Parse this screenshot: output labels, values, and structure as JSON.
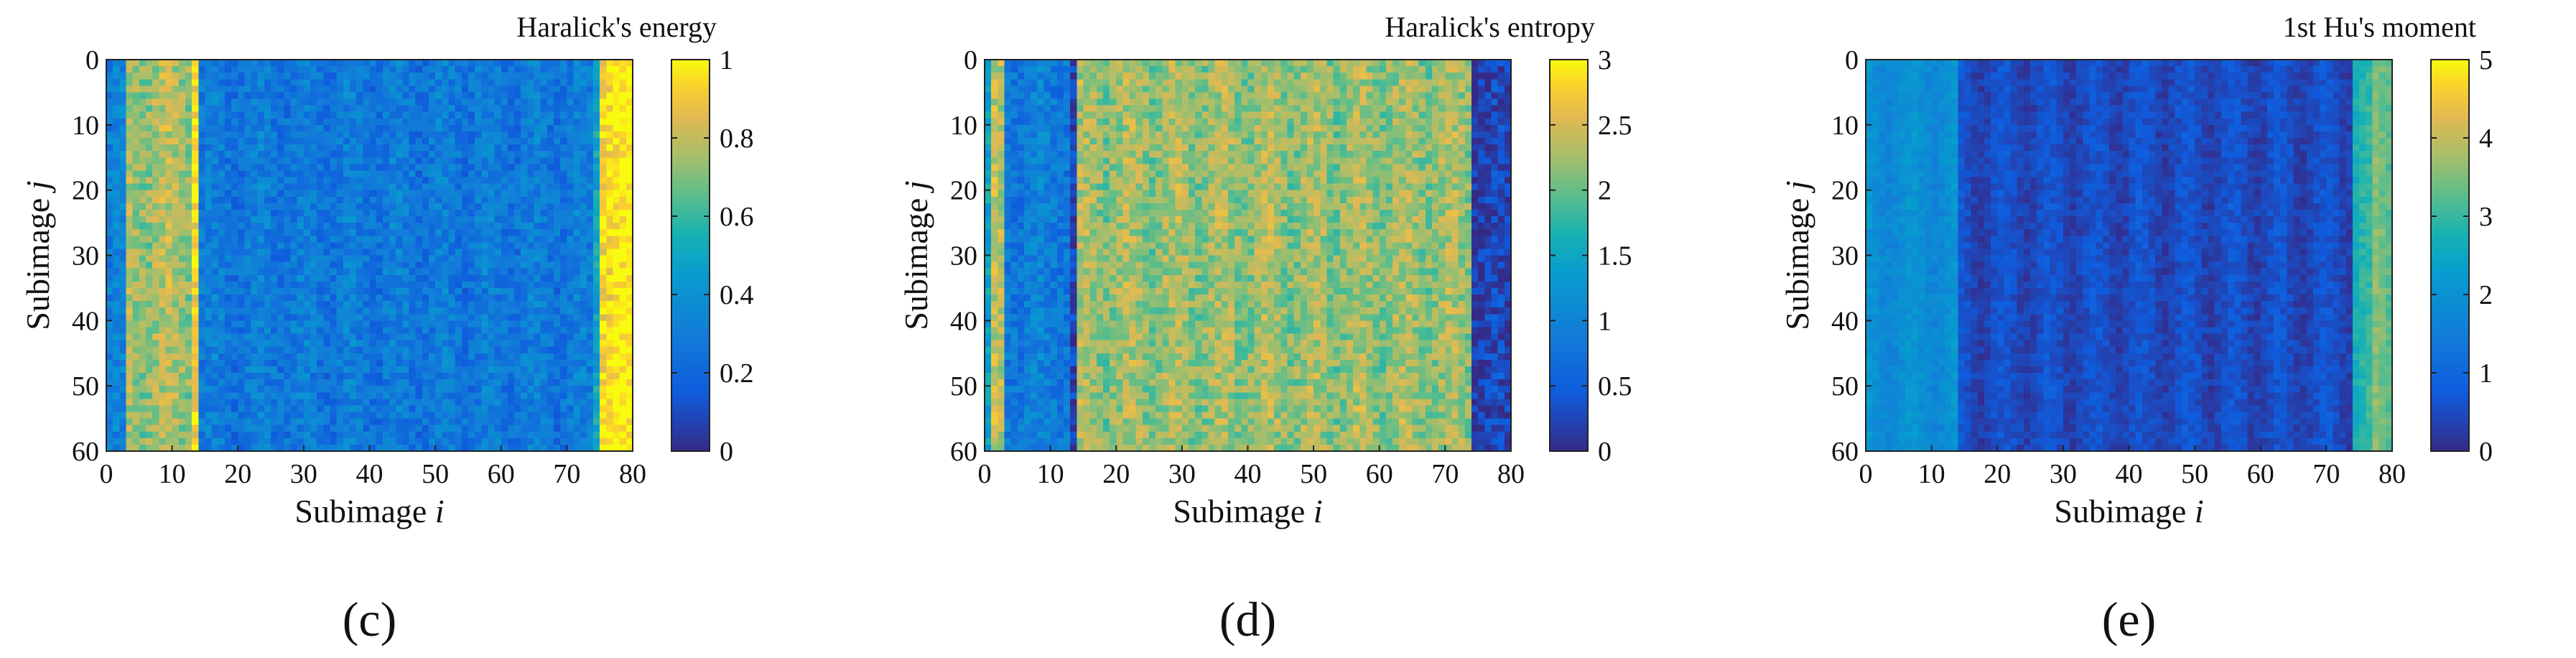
{
  "chart_data": [
    {
      "type": "heatmap",
      "panel_label": "(c)",
      "colorbar_title": "Haralick's energy",
      "xlabel": "Subimage  i",
      "ylabel": "Subimage  j",
      "xlim": [
        0,
        80
      ],
      "ylim": [
        0,
        60
      ],
      "x_ticks": [
        "0",
        "10",
        "20",
        "30",
        "40",
        "50",
        "60",
        "70",
        "80"
      ],
      "y_ticks": [
        "0",
        "10",
        "20",
        "30",
        "40",
        "50",
        "60"
      ],
      "colorbar_range": [
        0,
        1
      ],
      "colorbar_ticks": [
        "0",
        "0.2",
        "0.4",
        "0.6",
        "0.8",
        "1"
      ],
      "colormap": "parula",
      "bands": [
        {
          "i_start": 0,
          "i_end": 3,
          "value": 0.3
        },
        {
          "i_start": 3,
          "i_end": 13,
          "value": 0.75
        },
        {
          "i_start": 13,
          "i_end": 14,
          "value": 0.95
        },
        {
          "i_start": 14,
          "i_end": 74,
          "value": 0.28
        },
        {
          "i_start": 74,
          "i_end": 75,
          "value": 0.5
        },
        {
          "i_start": 75,
          "i_end": 80,
          "value": 0.97
        }
      ]
    },
    {
      "type": "heatmap",
      "panel_label": "(d)",
      "colorbar_title": "Haralick's entropy",
      "xlabel": "Subimage  i",
      "ylabel": "Subimage  j",
      "xlim": [
        0,
        80
      ],
      "ylim": [
        0,
        60
      ],
      "x_ticks": [
        "0",
        "10",
        "20",
        "30",
        "40",
        "50",
        "60",
        "70",
        "80"
      ],
      "y_ticks": [
        "0",
        "10",
        "20",
        "30",
        "40",
        "50",
        "60"
      ],
      "colorbar_range": [
        0,
        3
      ],
      "colorbar_ticks": [
        "0",
        "0.5",
        "1",
        "1.5",
        "2",
        "2.5",
        "3"
      ],
      "colormap": "parula",
      "bands": [
        {
          "i_start": 0,
          "i_end": 1,
          "value": 1.3
        },
        {
          "i_start": 1,
          "i_end": 3,
          "value": 2.3
        },
        {
          "i_start": 3,
          "i_end": 13,
          "value": 0.9
        },
        {
          "i_start": 13,
          "i_end": 14,
          "value": 0.2
        },
        {
          "i_start": 14,
          "i_end": 74,
          "value": 2.2
        },
        {
          "i_start": 74,
          "i_end": 80,
          "value": 0.2
        }
      ]
    },
    {
      "type": "heatmap",
      "panel_label": "(e)",
      "colorbar_title": "1st Hu's moment",
      "xlabel": "Subimage  i",
      "ylabel": "Subimage  j",
      "xlim": [
        0,
        80
      ],
      "ylim": [
        0,
        60
      ],
      "x_ticks": [
        "0",
        "10",
        "20",
        "30",
        "40",
        "50",
        "60",
        "70",
        "80"
      ],
      "y_ticks": [
        "0",
        "10",
        "20",
        "30",
        "40",
        "50",
        "60"
      ],
      "colorbar_range": [
        0,
        5
      ],
      "colorbar_ticks": [
        "0",
        "1",
        "2",
        "3",
        "4",
        "5"
      ],
      "colormap": "parula",
      "bands": [
        {
          "i_start": 0,
          "i_end": 14,
          "value": 1.9
        },
        {
          "i_start": 14,
          "i_end": 74,
          "value": 0.5
        },
        {
          "i_start": 74,
          "i_end": 77,
          "value": 2.8
        },
        {
          "i_start": 77,
          "i_end": 80,
          "value": 3.4
        }
      ]
    }
  ]
}
